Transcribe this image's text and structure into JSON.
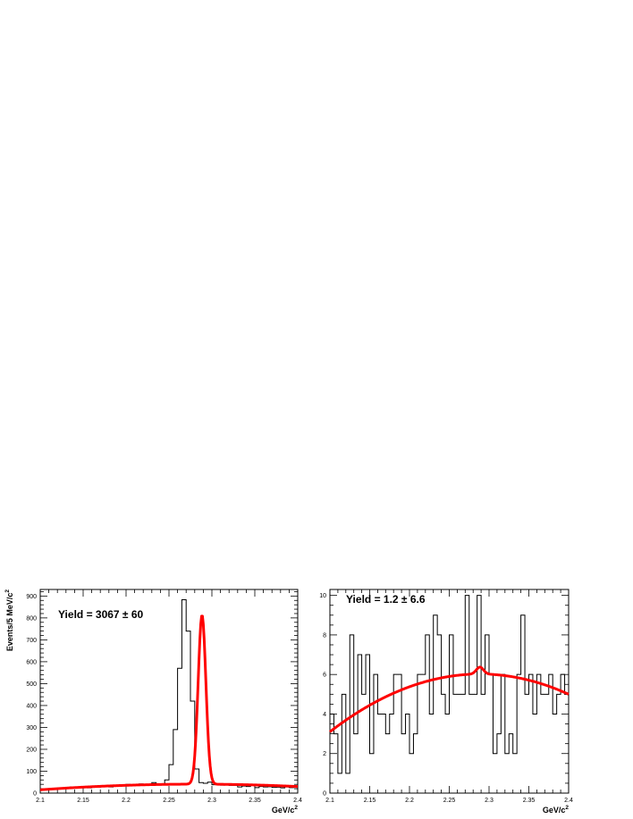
{
  "chart_data": [
    {
      "type": "line",
      "title": "",
      "xlabel": "GeV/c",
      "xlabel_sup": "2",
      "ylabel": "Events/5 MeV/c",
      "ylabel_sup": "2",
      "annotation": "Yield = 3067 ± 60",
      "xlim": [
        2.1,
        2.4
      ],
      "ylim": [
        0,
        930
      ],
      "x_ticks": [
        "2.1",
        "2.15",
        "2.2",
        "2.25",
        "2.3",
        "2.35",
        "2.4"
      ],
      "y_ticks": [
        "0",
        "100",
        "200",
        "300",
        "400",
        "500",
        "600",
        "700",
        "800",
        "900"
      ],
      "grid": false,
      "series": [
        {
          "kind": "histogram",
          "color": "#000000",
          "bin_width": 0.005,
          "x_start": 2.1,
          "values": [
            14,
            17,
            18,
            20,
            19,
            22,
            25,
            28,
            25,
            26,
            27,
            24,
            31,
            27,
            30,
            34,
            28,
            33,
            32,
            36,
            40,
            38,
            35,
            42,
            39,
            40,
            48,
            43,
            38,
            60,
            130,
            290,
            570,
            883,
            740,
            420,
            110,
            48,
            45,
            50,
            38,
            42,
            36,
            40,
            35,
            35,
            28,
            32,
            30,
            36,
            25,
            30,
            28,
            29,
            26,
            27,
            24,
            28,
            25,
            26
          ]
        },
        {
          "kind": "fit",
          "color": "#ff0000",
          "background": [
            15,
            40,
            30
          ],
          "peak": {
            "mean": 2.2885,
            "sigma": 0.0045,
            "amplitude": 772
          }
        }
      ]
    },
    {
      "type": "line",
      "title": "",
      "xlabel": "GeV/c",
      "xlabel_sup": "2",
      "ylabel": "",
      "annotation": "Yield = 1.2 ± 6.6",
      "xlim": [
        2.1,
        2.4
      ],
      "ylim": [
        0,
        10.3
      ],
      "x_ticks": [
        "2.1",
        "2.15",
        "2.2",
        "2.25",
        "2.3",
        "2.35",
        "2.4"
      ],
      "y_ticks": [
        "0",
        "2",
        "4",
        "6",
        "8",
        "10"
      ],
      "grid": false,
      "series": [
        {
          "kind": "histogram",
          "color": "#000000",
          "bin_width": 0.005,
          "x_start": 2.1,
          "values": [
            4,
            3,
            1,
            5,
            1,
            8,
            3,
            7,
            5,
            7,
            2,
            6,
            4,
            4,
            3,
            4,
            6,
            6,
            3,
            4,
            2,
            3,
            6,
            6,
            8,
            4,
            9,
            8,
            5,
            4,
            8,
            5,
            5,
            5,
            10,
            5,
            5,
            10,
            5,
            8,
            6,
            2,
            3,
            6,
            2,
            3,
            2,
            6,
            9,
            5,
            6,
            4,
            6,
            5,
            5,
            6,
            4,
            5,
            6,
            5
          ]
        },
        {
          "kind": "fit",
          "color": "#ff0000",
          "background": [
            3.1,
            5.9,
            5.0
          ],
          "peak": {
            "mean": 2.2885,
            "sigma": 0.0045,
            "amplitude": 0.35
          }
        }
      ]
    }
  ]
}
